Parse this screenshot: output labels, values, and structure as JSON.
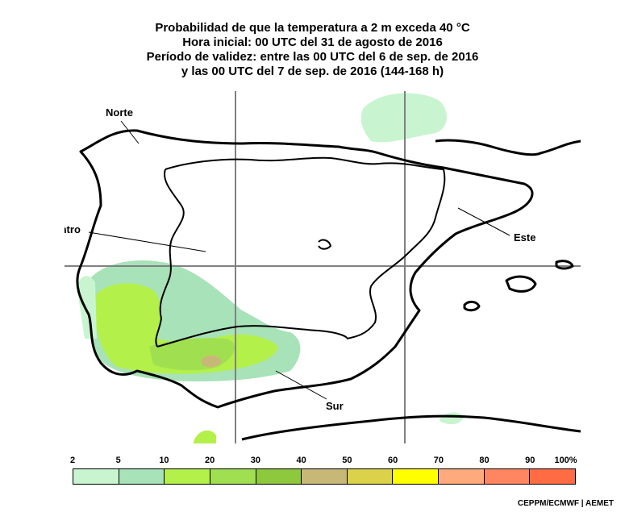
{
  "title": {
    "line1": "Probabilidad de que la temperatura a 2 m exceda 40 °C",
    "line2": "Hora inicial: 00 UTC del 31 de agosto de 2016",
    "line3": "Período de validez: entre las 00 UTC del 6 de sep. de 2016",
    "line4": "y las 00 UTC del 7 de sep. de 2016 (144-168 h)"
  },
  "regions": {
    "norte": "Norte",
    "centro": "Centro",
    "este": "Este",
    "sur": "Sur"
  },
  "legend": {
    "ticks": [
      "2",
      "5",
      "10",
      "20",
      "30",
      "40",
      "50",
      "60",
      "70",
      "80",
      "90",
      "100%"
    ],
    "colors": [
      "#c8f5d0",
      "#a8e2b8",
      "#b4f04a",
      "#a0e050",
      "#8ec83c",
      "#c8b878",
      "#dcd24a",
      "#ffff00",
      "#ffaa7c",
      "#ff8660",
      "#ff6c44"
    ]
  },
  "colors": {
    "land": "#ffffff",
    "sea": "#ffffff",
    "grid": "#808080",
    "coast": "#000000",
    "prob_2_5": "#c8f5d0",
    "prob_5_10": "#a8e2b8",
    "prob_10_20": "#b4f04a",
    "prob_20_30": "#a0e050",
    "prob_40_50": "#c8b878"
  },
  "credit": "CEPPM/ECMWF | AEMET"
}
